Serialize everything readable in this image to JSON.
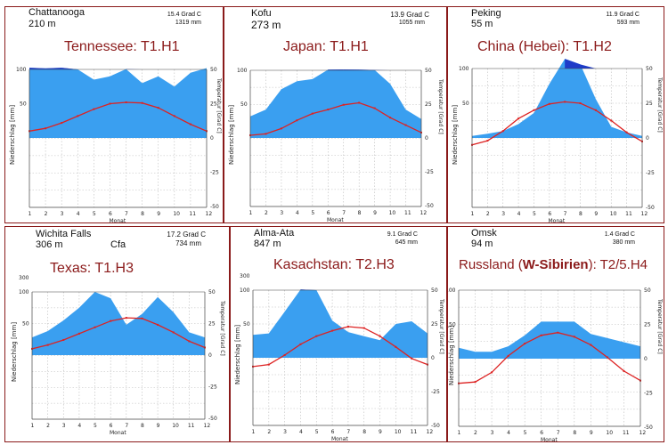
{
  "chart_data": [
    {
      "type": "climate-diagram",
      "station": "Chattanooga",
      "elevation": "210  m",
      "mean_temp": "15.4 Grad C",
      "annual_precip": "1319 mm",
      "label": "Tennessee: T1.H1",
      "precip": [
        125,
        115,
        125,
        100,
        85,
        90,
        105,
        80,
        90,
        75,
        95,
        120
      ],
      "temp": [
        5,
        7,
        11,
        16,
        21,
        25,
        26,
        25.5,
        22,
        16,
        10,
        5
      ]
    },
    {
      "type": "climate-diagram",
      "station": "Kofu",
      "elevation": "273  m",
      "mean_temp": "13.9 Grad C",
      "annual_precip": "1055 mm",
      "label": "Japan: T1.H1",
      "precip": [
        32,
        42,
        72,
        84,
        87,
        110,
        112,
        110,
        105,
        80,
        42,
        28
      ],
      "temp": [
        2,
        3,
        7,
        13,
        18,
        21,
        24.5,
        26,
        22,
        15,
        9.5,
        4
      ]
    },
    {
      "type": "climate-diagram",
      "station": "Peking",
      "elevation": "55  m",
      "mean_temp": "11.9 Grad C",
      "annual_precip": "593 mm",
      "label_prefix": "China (Hebei): T1.H2",
      "precip": [
        3,
        6,
        10,
        20,
        36,
        78,
        240,
        160,
        56,
        16,
        8,
        3
      ],
      "temp": [
        -5,
        -2,
        5,
        14,
        20,
        24.5,
        26,
        25,
        20,
        12.5,
        4,
        -2.5
      ]
    },
    {
      "type": "climate-diagram",
      "station": "Wichita Falls",
      "elevation": "306  m",
      "climate_class": "Cfa",
      "mean_temp": "17.2 Grad C",
      "annual_precip": "734 mm",
      "label": "Texas: T1.H3",
      "precip": [
        28,
        38,
        55,
        75,
        100,
        90,
        48,
        65,
        92,
        68,
        36,
        28
      ],
      "temp": [
        5,
        8,
        12,
        17,
        22,
        27,
        29.5,
        29,
        24,
        18,
        11,
        6
      ]
    },
    {
      "type": "climate-diagram",
      "station": "Alma-Ata",
      "elevation": "847  m",
      "mean_temp": "9.1 Grad C",
      "annual_precip": "645 mm",
      "label": "Kasachstan: T2.H3",
      "precip": [
        34,
        36,
        68,
        110,
        100,
        55,
        38,
        32,
        26,
        50,
        54,
        36
      ],
      "temp": [
        -6.5,
        -5,
        2,
        10,
        16,
        20,
        23,
        22,
        16,
        8,
        -0.5,
        -5
      ]
    },
    {
      "type": "climate-diagram",
      "station": "Omsk",
      "elevation": "94  m",
      "mean_temp": "1.4 Grad C",
      "annual_precip": "380 mm",
      "label_pre": "Russland (",
      "label_bold": "W-Sibirien",
      "label_post": "): T2/5.H4",
      "precip": [
        16,
        10,
        10,
        18,
        34,
        54,
        54,
        54,
        36,
        30,
        24,
        18
      ],
      "temp": [
        -18,
        -17,
        -10,
        2,
        11,
        17,
        19,
        16,
        10,
        1,
        -9,
        -16
      ]
    }
  ],
  "axes": {
    "xlabel": "Monat",
    "ylabel_left": "Niederschlag [mm]",
    "ylabel_right": "Temperatur [Grad C]",
    "months": [
      "1",
      "2",
      "3",
      "4",
      "5",
      "6",
      "7",
      "8",
      "9",
      "10",
      "11",
      "12"
    ],
    "precip_ticks": [
      "100",
      "50"
    ],
    "precip_top_tick": "300",
    "temp_ticks": [
      "50",
      "25",
      "0",
      "-25",
      "-50"
    ]
  },
  "colors": {
    "precip": "#3a9ff0",
    "precip_humid": "#1e3bc8",
    "temp": "#dd2222"
  }
}
